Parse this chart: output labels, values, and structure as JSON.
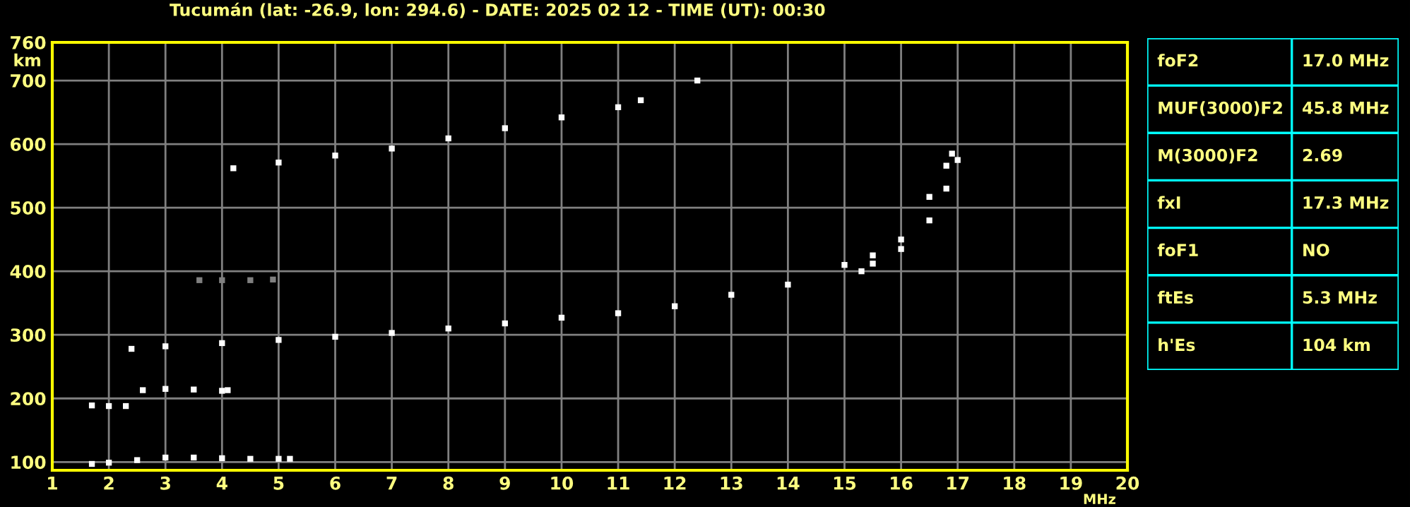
{
  "chart_data": [
    {
      "type": "scatter",
      "title": "Tucumán (lat: -26.9, lon: 294.6) - DATE: 2025 02 12 - TIME (UT): 00:30",
      "xlabel": "MHz",
      "ylabel": "km",
      "xlim": [
        1,
        20
      ],
      "ylim": [
        87,
        760
      ],
      "xticks": [
        1,
        2,
        3,
        4,
        5,
        6,
        7,
        8,
        9,
        10,
        11,
        12,
        13,
        14,
        15,
        16,
        17,
        18,
        19,
        20
      ],
      "yticks": [
        100,
        200,
        300,
        400,
        500,
        600,
        700,
        760
      ],
      "grid": true,
      "marker": "square",
      "series": [
        {
          "color": "#ffffff",
          "x": [
            2.4,
            3,
            4,
            5,
            6,
            7,
            8,
            9,
            10,
            11,
            12,
            13,
            14,
            15,
            15.5,
            16,
            16.5,
            16.8,
            16.9
          ],
          "values": [
            278,
            282,
            287,
            292,
            297,
            303,
            310,
            318,
            327,
            334,
            345,
            363,
            379,
            410,
            425,
            450,
            517,
            566,
            585
          ]
        },
        {
          "color": "#ffffff",
          "x": [
            15.3,
            15.5,
            16,
            16.5,
            16.8,
            17.0
          ],
          "values": [
            400,
            412,
            435,
            480,
            530,
            575
          ]
        },
        {
          "color": "#ffffff",
          "x": [
            4.2,
            5,
            6,
            7,
            8,
            9,
            10,
            11,
            11.4,
            12.4
          ],
          "values": [
            562,
            571,
            582,
            593,
            609,
            625,
            642,
            658,
            669,
            700
          ]
        },
        {
          "color": "#ffffff",
          "x": [
            1.7,
            2,
            2.5,
            3,
            3.5,
            4,
            4.5,
            5,
            5.2
          ],
          "values": [
            97,
            99,
            103,
            107,
            107,
            106,
            105,
            105,
            105
          ]
        },
        {
          "color": "#ffffff",
          "x": [
            2.6,
            3,
            3.5,
            4,
            4.1
          ],
          "values": [
            213,
            215,
            214,
            212,
            213
          ]
        },
        {
          "color": "#ffffff",
          "x": [
            1.7,
            2,
            2.3
          ],
          "values": [
            189,
            188,
            188
          ]
        },
        {
          "color": "#808080",
          "x": [
            3.6,
            4,
            4.5,
            4.9
          ],
          "values": [
            386,
            386,
            386,
            387
          ]
        }
      ]
    },
    {
      "type": "other",
      "annotations": [
        "foF2",
        "17.0 MHz",
        "MUF(3000)F2",
        "45.8 MHz",
        "M(3000)F2",
        "2.69",
        "fxI",
        "17.3 MHz",
        "foF1",
        "NO",
        "ftEs",
        "5.3 MHz",
        "h'Es",
        "104 km"
      ]
    }
  ]
}
